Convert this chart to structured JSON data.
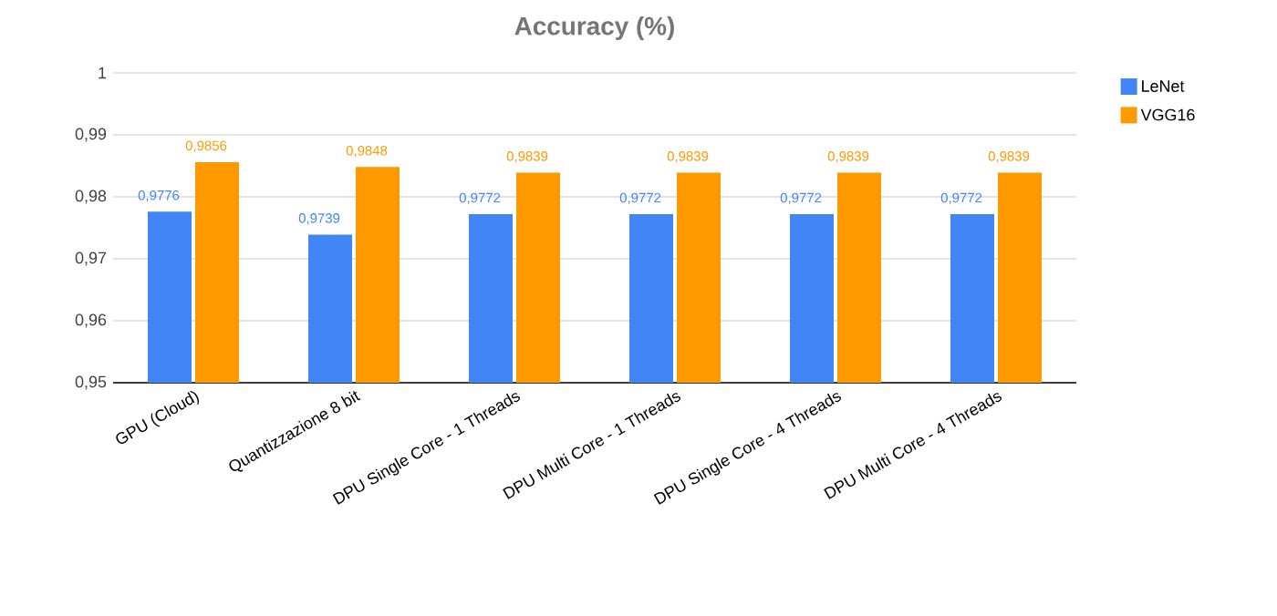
{
  "chart_data": {
    "type": "bar",
    "title": "Accuracy (%)",
    "categories": [
      "GPU (Cloud)",
      "Quantizzazione 8 bit",
      "DPU Single Core - 1 Threads",
      "DPU Multi Core - 1 Threads",
      "DPU Single Core - 4 Threads",
      "DPU Multi Core - 4 Threads"
    ],
    "series": [
      {
        "name": "LeNet",
        "color": "#4285f4",
        "values": [
          0.9776,
          0.9739,
          0.9772,
          0.9772,
          0.9772,
          0.9772
        ],
        "value_labels": [
          "0,9776",
          "0,9739",
          "0,9772",
          "0,9772",
          "0,9772",
          "0,9772"
        ]
      },
      {
        "name": "VGG16",
        "color": "#ff9900",
        "values": [
          0.9856,
          0.9848,
          0.9839,
          0.9839,
          0.9839,
          0.9839
        ],
        "value_labels": [
          "0,9856",
          "0,9848",
          "0,9839",
          "0,9839",
          "0,9839",
          "0,9839"
        ]
      }
    ],
    "ylim": [
      0.95,
      1
    ],
    "yticks": [
      {
        "value": 0.95,
        "label": "0,95"
      },
      {
        "value": 0.96,
        "label": "0,96"
      },
      {
        "value": 0.97,
        "label": "0,97"
      },
      {
        "value": 0.98,
        "label": "0,98"
      },
      {
        "value": 0.99,
        "label": "0,99"
      },
      1
    ],
    "grid": "y",
    "legend": "right"
  }
}
